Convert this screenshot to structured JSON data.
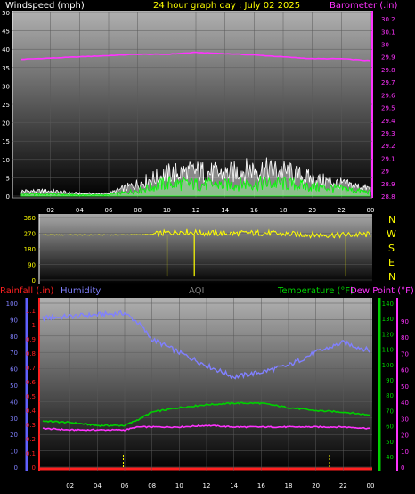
{
  "header": {
    "wind_label": "Windspeed (mph)",
    "title": "24 hour graph day : July 02 2025",
    "baro_label": "Barometer (.in)"
  },
  "mid_header": {
    "rain_label": "Rainfall (.in)",
    "humidity_label": "Humidity",
    "aqi_label": "AQI",
    "temp_label": "Temperature (°F)",
    "dew_label": "Dew Point (°F)"
  },
  "direction_labels": [
    "N",
    "W",
    "S",
    "E",
    "N"
  ],
  "colors": {
    "wind": "#ffffff",
    "gust": "#ffffff",
    "wind_avg": "#00ff00",
    "barometer": "#ff33ff",
    "direction": "#ffff00",
    "humidity": "#8080ff",
    "temperature": "#00d000",
    "dewpoint": "#ff33ff",
    "rainfall": "#ff2020",
    "title": "#ffff00"
  },
  "chart_data": [
    {
      "type": "line",
      "name": "wind_barometer",
      "x_ticks": [
        "02",
        "04",
        "06",
        "08",
        "10",
        "12",
        "14",
        "16",
        "18",
        "20",
        "22",
        "00"
      ],
      "y_left_ticks": [
        "0",
        "5",
        "10",
        "15",
        "20",
        "25",
        "30",
        "35",
        "40",
        "45",
        "50"
      ],
      "ylim_left": [
        0,
        50
      ],
      "y_right_ticks": [
        "28.8",
        "28.9",
        "29",
        "29.1",
        "29.2",
        "29.3",
        "29.4",
        "29.5",
        "29.6",
        "29.7",
        "29.8",
        "29.9",
        "30",
        "30.1",
        "30.2"
      ],
      "ylim_right": [
        28.8,
        30.25
      ],
      "x": [
        0,
        2,
        4,
        6,
        8,
        10,
        12,
        14,
        16,
        18,
        20,
        22,
        24
      ],
      "barometer": [
        29.88,
        29.89,
        29.9,
        29.91,
        29.92,
        29.92,
        29.935,
        29.925,
        29.915,
        29.9,
        29.885,
        29.885,
        29.87
      ],
      "wind_peak": [
        2,
        2,
        1,
        1,
        5,
        9,
        10,
        9,
        11,
        10,
        7,
        5,
        3
      ],
      "wind_avg": [
        0.5,
        0.5,
        0.3,
        0.3,
        1.5,
        3.5,
        3.2,
        3,
        3.5,
        3.4,
        2.5,
        2,
        1
      ]
    },
    {
      "type": "line",
      "name": "wind_direction",
      "x": [
        0,
        2,
        4,
        6,
        8,
        10,
        12,
        14,
        16,
        18,
        20,
        22,
        24
      ],
      "y_ticks": [
        "0",
        "90",
        "180",
        "270",
        "360"
      ],
      "ylim": [
        0,
        360
      ],
      "direction": [
        260,
        260,
        260,
        260,
        262,
        280,
        270,
        268,
        272,
        265,
        260,
        260,
        262
      ],
      "drops": [
        [
          9.1,
          20
        ],
        [
          11.1,
          20
        ],
        [
          22.2,
          20
        ]
      ]
    },
    {
      "type": "line",
      "name": "humidity_temperature",
      "x_ticks": [
        "02",
        "04",
        "06",
        "08",
        "10",
        "12",
        "14",
        "16",
        "18",
        "20",
        "22",
        "00"
      ],
      "humidity_ticks": [
        "0",
        "10",
        "20",
        "30",
        "40",
        "50",
        "60",
        "70",
        "80",
        "90",
        "100"
      ],
      "rain_ticks": [
        "0",
        "0.1",
        "0.2",
        "0.3",
        "0.4",
        "0.5",
        "0.6",
        "0.7",
        "0.8",
        "0.9",
        "1",
        "1.1"
      ],
      "temp_ticks": [
        "40",
        "50",
        "60",
        "70",
        "80",
        "90",
        "100",
        "110",
        "120",
        "130",
        "140"
      ],
      "dew_ticks": [
        "0",
        "10",
        "20",
        "30",
        "40",
        "50",
        "60",
        "70",
        "80",
        "90"
      ],
      "humidity_ylim": [
        0,
        100
      ],
      "temp_ylim": [
        35,
        145
      ],
      "x": [
        0,
        2,
        4,
        6,
        7,
        8,
        10,
        12,
        14,
        16,
        18,
        20,
        22,
        24
      ],
      "humidity": [
        91,
        92,
        93,
        94,
        88,
        78,
        70,
        62,
        55,
        58,
        62,
        70,
        76,
        71
      ],
      "temperature": [
        66,
        65,
        63,
        63,
        67,
        72,
        75,
        77,
        78,
        78,
        75,
        73,
        72,
        70
      ],
      "dewpoint": [
        61,
        60,
        60,
        60,
        62,
        62,
        62,
        63,
        62,
        62,
        62,
        62,
        62,
        61
      ],
      "rainfall": [
        0,
        0,
        0,
        0,
        0,
        0,
        0,
        0,
        0,
        0,
        0,
        0,
        0,
        0
      ],
      "markers_x": [
        5.9,
        21.0
      ]
    }
  ]
}
